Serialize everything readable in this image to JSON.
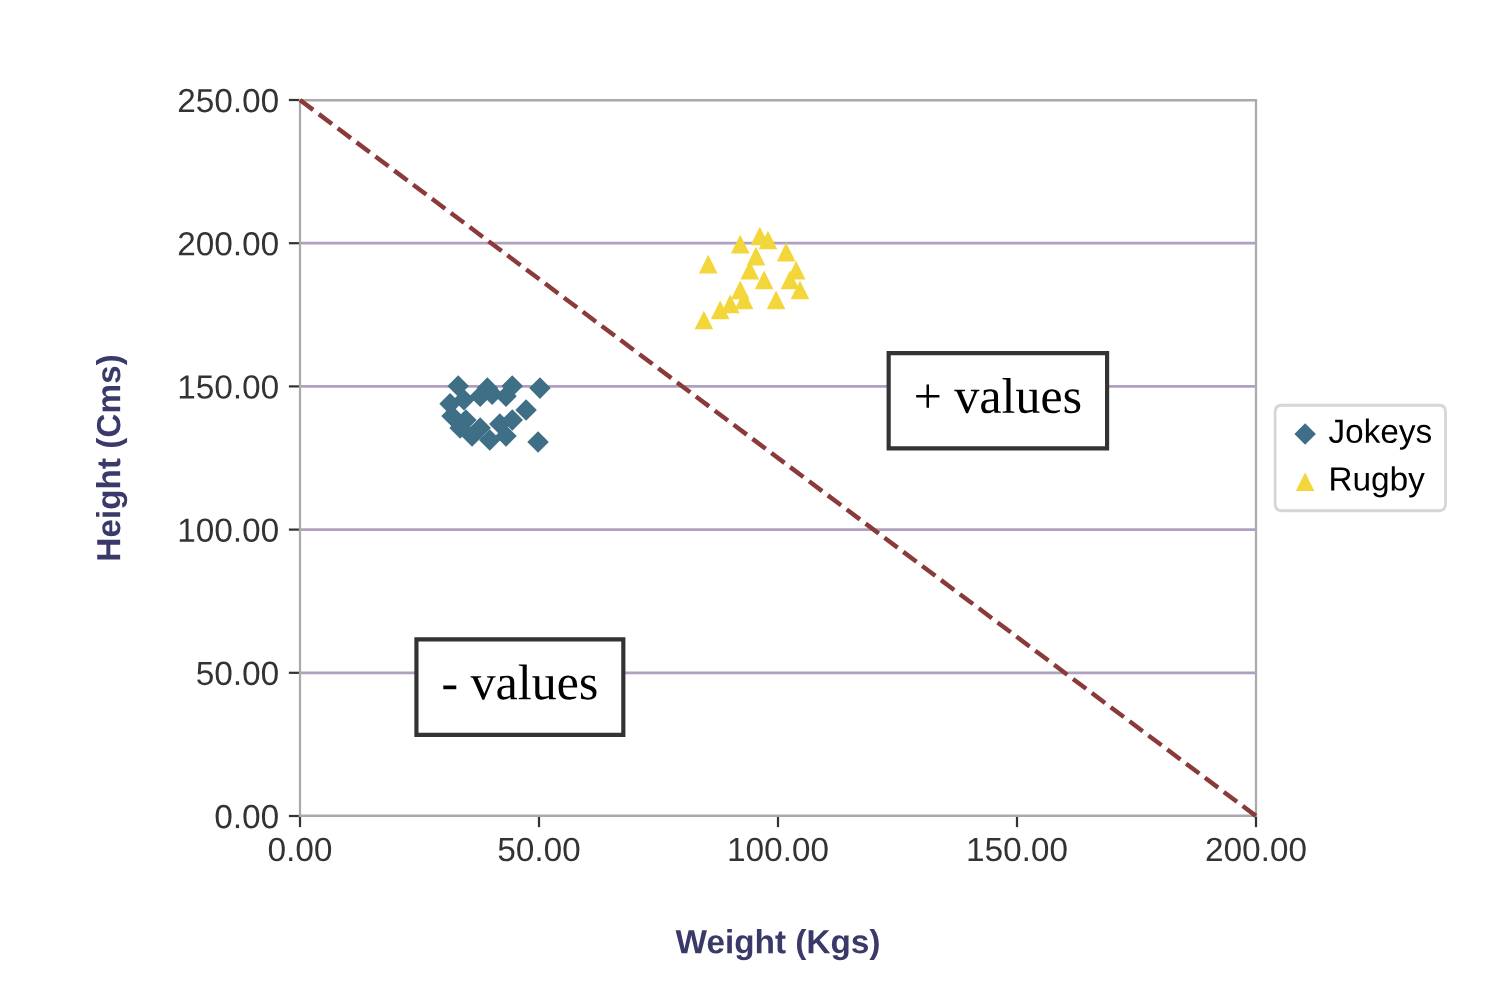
{
  "chart_data": {
    "type": "scatter",
    "xlabel": "Weight (Kgs)",
    "ylabel": "Height (Cms)",
    "xlim": [
      0,
      200
    ],
    "ylim": [
      0,
      250
    ],
    "xticks": [
      {
        "value": 0,
        "label": "0.00"
      },
      {
        "value": 50,
        "label": "50.00"
      },
      {
        "value": 100,
        "label": "100.00"
      },
      {
        "value": 150,
        "label": "150.00"
      },
      {
        "value": 200,
        "label": "200.00"
      }
    ],
    "yticks": [
      {
        "value": 0,
        "label": "0.00"
      },
      {
        "value": 50,
        "label": "50.00"
      },
      {
        "value": 100,
        "label": "100.00"
      },
      {
        "value": 150,
        "label": "150.00"
      },
      {
        "value": 200,
        "label": "200.00"
      },
      {
        "value": 250,
        "label": "250.00"
      }
    ],
    "grid": "y",
    "legend": "right",
    "annotations": [
      "+ values",
      "- values"
    ],
    "series": [
      {
        "name": "Jokeys",
        "color": "#3f6f86",
        "marker": "diamond",
        "x": [
          33.1,
          39.2,
          44.4,
          50.2,
          31.4,
          34.3,
          37.7,
          40.2,
          43.1,
          31.8,
          34.7,
          37.7,
          41.8,
          44.4,
          47.3,
          36.0,
          39.7,
          43.1,
          49.8,
          33.5
        ],
        "values": [
          150.1,
          149.4,
          150.1,
          149.4,
          143.9,
          145.3,
          146.6,
          147.3,
          146.6,
          139.7,
          138.3,
          135.5,
          136.9,
          138.3,
          141.8,
          132.7,
          131.3,
          132.7,
          130.6,
          135.5
        ]
      },
      {
        "name": "Rugby",
        "color": "#f2d63a",
        "marker": "triangle",
        "x": [
          85.4,
          92.1,
          96.2,
          97.9,
          101.7,
          92.9,
          87.9,
          84.5,
          94.1,
          97.1,
          103.8,
          104.6,
          92.1,
          99.6,
          90.0,
          95.4,
          102.5
        ],
        "values": [
          192.7,
          199.7,
          202.5,
          201.1,
          196.9,
          180.2,
          176.7,
          173.2,
          190.6,
          187.2,
          190.6,
          183.7,
          183.7,
          180.2,
          178.8,
          195.5,
          187.2
        ]
      },
      {
        "type": "line",
        "color": "#8b3a3a",
        "line_style": "dashed",
        "marker": "none",
        "x": [
          0,
          200
        ],
        "values": [
          250,
          0
        ]
      }
    ]
  }
}
